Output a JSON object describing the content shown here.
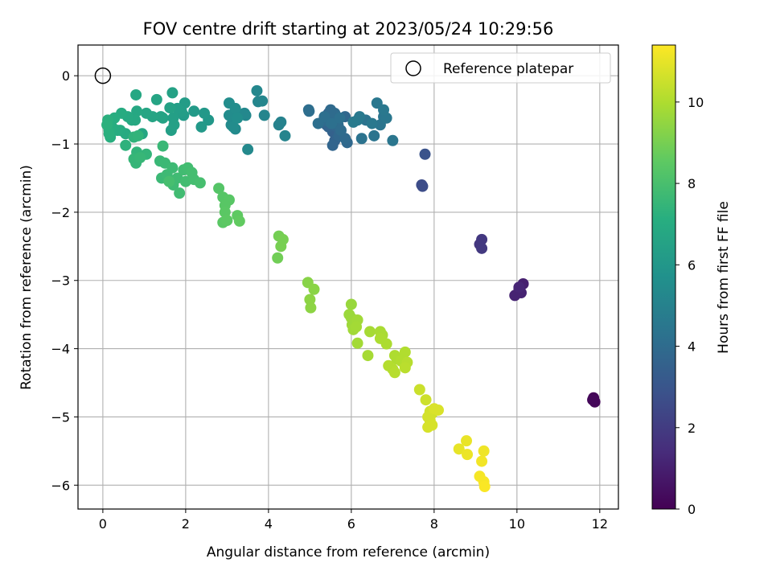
{
  "chart_data": {
    "type": "scatter",
    "title": "FOV centre drift starting at 2023/05/24 10:29:56",
    "xlabel": "Angular distance from reference (arcmin)",
    "ylabel": "Rotation from reference (arcmin)",
    "xlim": [
      -0.6,
      12.45
    ],
    "ylim": [
      -6.35,
      0.45
    ],
    "xticks": [
      0,
      2,
      4,
      6,
      8,
      10,
      12
    ],
    "yticks": [
      0,
      -1,
      -2,
      -3,
      -4,
      -5,
      -6
    ],
    "grid": true,
    "legend": {
      "label": "Reference platepar",
      "position": "top-right"
    },
    "reference_point": {
      "x": 0,
      "y": 0
    },
    "colorbar": {
      "label": "Hours from first FF file",
      "colormap": "viridis",
      "range": [
        0,
        11.4
      ],
      "ticks": [
        0,
        2,
        4,
        6,
        8,
        10
      ]
    },
    "series": [
      {
        "columns": [
          "x",
          "y",
          "hours"
        ],
        "points": [
          [
            11.85,
            -4.72,
            0.1
          ],
          [
            11.88,
            -4.78,
            0.15
          ],
          [
            11.83,
            -4.75,
            0.2
          ],
          [
            10.15,
            -3.05,
            1.0
          ],
          [
            10.05,
            -3.12,
            1.05
          ],
          [
            9.95,
            -3.22,
            1.1
          ],
          [
            10.1,
            -3.18,
            1.1
          ],
          [
            10.05,
            -3.1,
            1.2
          ],
          [
            9.1,
            -2.47,
            1.8
          ],
          [
            9.15,
            -2.4,
            1.85
          ],
          [
            9.15,
            -2.53,
            1.9
          ],
          [
            7.7,
            -1.6,
            2.6
          ],
          [
            7.72,
            -1.62,
            2.65
          ],
          [
            7.78,
            -1.15,
            2.9
          ],
          [
            5.55,
            -0.58,
            3.4
          ],
          [
            5.45,
            -0.55,
            3.45
          ],
          [
            5.5,
            -0.62,
            3.5
          ],
          [
            5.55,
            -0.82,
            3.5
          ],
          [
            5.5,
            -0.68,
            3.55
          ],
          [
            5.45,
            -0.75,
            3.6
          ],
          [
            5.6,
            -0.95,
            3.6
          ],
          [
            5.4,
            -0.72,
            3.65
          ],
          [
            5.3,
            -0.68,
            3.7
          ],
          [
            5.55,
            -1.02,
            3.7
          ],
          [
            5.65,
            -0.75,
            3.75
          ],
          [
            5.7,
            -0.88,
            3.8
          ],
          [
            5.85,
            -0.6,
            3.8
          ],
          [
            5.9,
            -0.98,
            3.85
          ],
          [
            5.85,
            -0.92,
            3.9
          ],
          [
            5.5,
            -0.5,
            3.9
          ],
          [
            5.42,
            -0.66,
            3.95
          ],
          [
            5.6,
            -0.55,
            3.95
          ],
          [
            5.68,
            -0.72,
            4.0
          ],
          [
            5.75,
            -0.8,
            4.0
          ],
          [
            4.97,
            -0.5,
            4.1
          ],
          [
            4.98,
            -0.52,
            4.1
          ],
          [
            5.2,
            -0.7,
            4.15
          ],
          [
            5.35,
            -0.6,
            4.15
          ],
          [
            5.52,
            -0.7,
            4.2
          ],
          [
            5.72,
            -0.62,
            4.2
          ],
          [
            6.35,
            -0.65,
            4.3
          ],
          [
            6.25,
            -0.92,
            4.3
          ],
          [
            6.55,
            -0.88,
            4.35
          ],
          [
            6.7,
            -0.72,
            4.4
          ],
          [
            6.78,
            -0.6,
            4.4
          ],
          [
            7.0,
            -0.95,
            4.45
          ],
          [
            6.85,
            -0.62,
            4.5
          ],
          [
            6.62,
            -0.4,
            4.5
          ],
          [
            6.5,
            -0.7,
            4.55
          ],
          [
            6.78,
            -0.5,
            4.55
          ],
          [
            6.2,
            -0.6,
            4.6
          ],
          [
            6.15,
            -0.65,
            4.6
          ],
          [
            6.05,
            -0.68,
            4.65
          ],
          [
            4.25,
            -0.72,
            5.0
          ],
          [
            4.3,
            -0.68,
            5.0
          ],
          [
            4.4,
            -0.88,
            5.1
          ],
          [
            3.9,
            -0.58,
            5.15
          ],
          [
            3.75,
            -0.38,
            5.2
          ],
          [
            3.85,
            -0.37,
            5.2
          ],
          [
            3.72,
            -0.22,
            5.25
          ],
          [
            3.45,
            -0.58,
            5.3
          ],
          [
            3.42,
            -0.55,
            5.3
          ],
          [
            3.5,
            -1.08,
            5.35
          ],
          [
            3.2,
            -0.78,
            5.4
          ],
          [
            3.1,
            -0.72,
            5.4
          ],
          [
            3.15,
            -0.75,
            5.45
          ],
          [
            3.05,
            -0.58,
            5.45
          ],
          [
            3.05,
            -0.4,
            5.5
          ],
          [
            3.2,
            -0.48,
            5.5
          ],
          [
            3.25,
            -0.62,
            5.55
          ],
          [
            2.55,
            -0.65,
            6.0
          ],
          [
            2.45,
            -0.55,
            6.05
          ],
          [
            2.38,
            -0.75,
            6.1
          ],
          [
            2.2,
            -0.52,
            6.15
          ],
          [
            1.95,
            -0.58,
            6.2
          ],
          [
            1.98,
            -0.4,
            6.25
          ],
          [
            1.9,
            -0.52,
            6.3
          ],
          [
            1.8,
            -0.48,
            6.35
          ],
          [
            1.7,
            -0.62,
            6.4
          ],
          [
            1.65,
            -0.8,
            6.4
          ],
          [
            1.72,
            -0.72,
            6.45
          ],
          [
            1.62,
            -0.47,
            6.5
          ],
          [
            1.68,
            -0.25,
            6.5
          ],
          [
            1.45,
            -0.62,
            6.55
          ],
          [
            1.4,
            -0.6,
            6.6
          ],
          [
            1.3,
            -0.35,
            6.65
          ],
          [
            1.2,
            -0.6,
            6.65
          ],
          [
            1.05,
            -0.55,
            6.7
          ],
          [
            0.95,
            -0.85,
            6.75
          ],
          [
            0.8,
            -0.28,
            6.8
          ],
          [
            0.82,
            -0.52,
            6.8
          ],
          [
            0.78,
            -0.65,
            6.85
          ],
          [
            0.7,
            -0.65,
            6.85
          ],
          [
            0.6,
            -0.6,
            6.9
          ],
          [
            0.55,
            -0.85,
            6.95
          ],
          [
            0.45,
            -0.55,
            7.0
          ],
          [
            0.42,
            -0.8,
            7.0
          ],
          [
            0.35,
            -0.8,
            7.05
          ],
          [
            0.28,
            -0.62,
            7.1
          ],
          [
            0.22,
            -0.75,
            7.1
          ],
          [
            0.15,
            -0.8,
            7.15
          ],
          [
            0.18,
            -0.9,
            7.15
          ],
          [
            0.12,
            -0.65,
            7.2
          ],
          [
            0.15,
            -0.85,
            7.2
          ],
          [
            0.1,
            -0.72,
            7.25
          ],
          [
            0.55,
            -1.02,
            7.3
          ],
          [
            0.75,
            -0.9,
            7.35
          ],
          [
            0.85,
            -0.88,
            7.4
          ],
          [
            0.82,
            -1.12,
            7.4
          ],
          [
            1.05,
            -1.15,
            7.45
          ],
          [
            0.8,
            -1.28,
            7.5
          ],
          [
            0.75,
            -1.22,
            7.5
          ],
          [
            0.9,
            -1.2,
            7.55
          ],
          [
            1.45,
            -1.03,
            7.6
          ],
          [
            1.38,
            -1.25,
            7.6
          ],
          [
            1.5,
            -1.28,
            7.65
          ],
          [
            1.42,
            -1.5,
            7.65
          ],
          [
            1.55,
            -1.45,
            7.7
          ],
          [
            1.68,
            -1.35,
            7.7
          ],
          [
            1.8,
            -1.5,
            7.75
          ],
          [
            1.7,
            -1.6,
            7.75
          ],
          [
            1.85,
            -1.72,
            7.8
          ],
          [
            1.95,
            -1.38,
            7.8
          ],
          [
            2.05,
            -1.35,
            7.85
          ],
          [
            2.0,
            -1.55,
            7.85
          ],
          [
            2.15,
            -1.42,
            7.9
          ],
          [
            2.2,
            -1.52,
            7.9
          ],
          [
            2.35,
            -1.57,
            7.95
          ],
          [
            1.6,
            -1.55,
            7.95
          ],
          [
            2.8,
            -1.65,
            8.3
          ],
          [
            2.9,
            -1.78,
            8.35
          ],
          [
            3.05,
            -1.82,
            8.4
          ],
          [
            2.95,
            -1.9,
            8.4
          ],
          [
            2.95,
            -2.0,
            8.45
          ],
          [
            2.9,
            -2.15,
            8.45
          ],
          [
            3.0,
            -2.12,
            8.5
          ],
          [
            3.25,
            -2.05,
            8.55
          ],
          [
            3.3,
            -2.13,
            8.6
          ],
          [
            4.22,
            -2.67,
            8.9
          ],
          [
            4.25,
            -2.35,
            8.95
          ],
          [
            4.35,
            -2.4,
            9.0
          ],
          [
            4.3,
            -2.5,
            9.0
          ],
          [
            4.95,
            -3.03,
            9.3
          ],
          [
            5.1,
            -3.13,
            9.35
          ],
          [
            5.0,
            -3.28,
            9.4
          ],
          [
            5.02,
            -3.4,
            9.4
          ],
          [
            6.0,
            -3.35,
            9.6
          ],
          [
            5.95,
            -3.5,
            9.65
          ],
          [
            6.0,
            -3.55,
            9.65
          ],
          [
            6.1,
            -3.6,
            9.7
          ],
          [
            6.02,
            -3.65,
            9.7
          ],
          [
            6.05,
            -3.72,
            9.75
          ],
          [
            6.15,
            -3.58,
            9.75
          ],
          [
            6.12,
            -3.68,
            9.8
          ],
          [
            6.15,
            -3.92,
            9.8
          ],
          [
            6.4,
            -4.1,
            9.85
          ],
          [
            6.45,
            -3.75,
            9.85
          ],
          [
            6.7,
            -3.75,
            9.9
          ],
          [
            6.75,
            -3.8,
            9.9
          ],
          [
            6.7,
            -3.85,
            9.95
          ],
          [
            6.85,
            -3.93,
            9.95
          ],
          [
            7.05,
            -4.1,
            10.0
          ],
          [
            7.1,
            -4.15,
            10.0
          ],
          [
            7.3,
            -4.05,
            10.05
          ],
          [
            7.2,
            -4.18,
            10.05
          ],
          [
            6.9,
            -4.25,
            10.1
          ],
          [
            7.0,
            -4.3,
            10.1
          ],
          [
            7.05,
            -4.35,
            10.15
          ],
          [
            7.35,
            -4.2,
            10.15
          ],
          [
            7.3,
            -4.28,
            10.2
          ],
          [
            7.65,
            -4.6,
            10.5
          ],
          [
            7.8,
            -4.75,
            10.55
          ],
          [
            7.9,
            -4.92,
            10.6
          ],
          [
            7.95,
            -4.95,
            10.6
          ],
          [
            7.85,
            -5.0,
            10.65
          ],
          [
            7.9,
            -5.05,
            10.65
          ],
          [
            7.95,
            -5.12,
            10.7
          ],
          [
            7.85,
            -5.15,
            10.7
          ],
          [
            8.1,
            -4.9,
            10.75
          ],
          [
            8.0,
            -4.88,
            10.75
          ],
          [
            8.6,
            -5.47,
            11.0
          ],
          [
            8.78,
            -5.35,
            11.05
          ],
          [
            8.8,
            -5.55,
            11.1
          ],
          [
            9.2,
            -5.5,
            11.15
          ],
          [
            9.15,
            -5.65,
            11.2
          ],
          [
            9.1,
            -5.87,
            11.25
          ],
          [
            9.2,
            -5.95,
            11.3
          ],
          [
            9.22,
            -6.02,
            11.35
          ]
        ]
      }
    ]
  }
}
